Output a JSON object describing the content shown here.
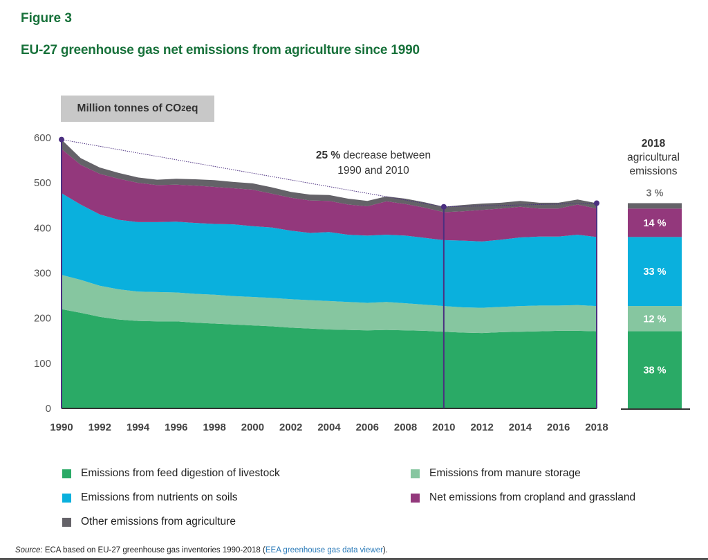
{
  "figure_label": "Figure 3",
  "title": "EU-27 greenhouse gas net emissions from agriculture since 1990",
  "unit_label": {
    "prefix": "Million tonnes of CO",
    "sub": "2",
    "suffix": "eq"
  },
  "annotation": {
    "bold": "25 %",
    "text": " decrease between",
    "line2": "1990 and 2010"
  },
  "side_panel": {
    "year": "2018",
    "line1": "agricultural",
    "line2": "emissions",
    "shares": [
      {
        "series": "livestock",
        "label": "38 %"
      },
      {
        "series": "manure",
        "label": "12 %"
      },
      {
        "series": "soils",
        "label": "33 %"
      },
      {
        "series": "cropland",
        "label": "14 %"
      },
      {
        "series": "other",
        "label": "3 %"
      }
    ]
  },
  "source": {
    "prefix": "Source:",
    "text": " ECA based on EU-27 greenhouse gas inventories 1990-2018 (",
    "link": "EEA greenhouse gas data viewer",
    "suffix": ")."
  },
  "colors": {
    "livestock": "#2aaa66",
    "manure": "#86c6a0",
    "soils": "#0ab0dd",
    "cropland": "#93387c",
    "other": "#646268",
    "marker": "#4b2f80",
    "title": "#17713a"
  },
  "chart_data": {
    "type": "area",
    "stacked": true,
    "title": "EU-27 greenhouse gas net emissions from agriculture since 1990",
    "xlabel": "",
    "ylabel": "Million tonnes of CO2eq",
    "ylim": [
      0,
      600
    ],
    "xlim": [
      1990,
      2018
    ],
    "yticks": [
      0,
      100,
      200,
      300,
      400,
      500,
      600
    ],
    "xticks": [
      1990,
      1992,
      1994,
      1996,
      1998,
      2000,
      2002,
      2004,
      2006,
      2008,
      2010,
      2012,
      2014,
      2016,
      2018
    ],
    "grid": false,
    "legend_position": "bottom",
    "x": [
      1990,
      1991,
      1992,
      1993,
      1994,
      1995,
      1996,
      1997,
      1998,
      1999,
      2000,
      2001,
      2002,
      2003,
      2004,
      2005,
      2006,
      2007,
      2008,
      2009,
      2010,
      2011,
      2012,
      2013,
      2014,
      2015,
      2016,
      2017,
      2018
    ],
    "series": [
      {
        "key": "livestock",
        "name": "Emissions from feed digestion of livestock",
        "values": [
          220,
          212,
          203,
          197,
          194,
          193,
          193,
          190,
          188,
          186,
          184,
          182,
          179,
          177,
          175,
          174,
          173,
          174,
          173,
          172,
          170,
          168,
          167,
          169,
          170,
          171,
          172,
          172,
          171
        ]
      },
      {
        "key": "manure",
        "name": "Emissions from manure storage",
        "values": [
          76,
          73,
          69,
          67,
          65,
          65,
          64,
          64,
          64,
          63,
          63,
          63,
          63,
          63,
          63,
          62,
          61,
          62,
          60,
          58,
          57,
          56,
          56,
          56,
          57,
          57,
          56,
          57,
          56
        ]
      },
      {
        "key": "soils",
        "name": "Emissions from nutrients on soils",
        "values": [
          181,
          167,
          158,
          154,
          154,
          155,
          157,
          157,
          157,
          159,
          157,
          156,
          152,
          149,
          153,
          149,
          149,
          149,
          150,
          148,
          146,
          148,
          147,
          149,
          152,
          153,
          153,
          156,
          153
        ]
      },
      {
        "key": "cropland",
        "name": "Net emissions from cropland and grassland",
        "values": [
          98,
          88,
          90,
          91,
          87,
          82,
          82,
          83,
          82,
          80,
          81,
          75,
          73,
          72,
          69,
          67,
          65,
          74,
          70,
          67,
          62,
          65,
          70,
          69,
          68,
          62,
          62,
          67,
          63
        ]
      },
      {
        "key": "other",
        "name": "Other emissions from agriculture",
        "values": [
          21,
          15,
          14,
          13,
          12,
          12,
          13,
          14,
          15,
          14,
          14,
          14,
          13,
          13,
          13,
          13,
          12,
          11,
          12,
          12,
          12,
          14,
          14,
          13,
          13,
          13,
          13,
          11,
          12
        ]
      }
    ],
    "reference_points": [
      {
        "year": 1990,
        "value": 596
      },
      {
        "year": 2010,
        "value": 447
      },
      {
        "year": 2018,
        "value": 455
      }
    ],
    "annotations": [
      "25 % decrease between 1990 and 2010"
    ],
    "side_bar": {
      "title": "2018 agricultural emissions",
      "shares_percent": {
        "livestock": 38,
        "manure": 12,
        "soils": 33,
        "cropland": 14,
        "other": 3
      }
    }
  },
  "legend": [
    {
      "key": "livestock",
      "label": "Emissions from feed digestion of livestock"
    },
    {
      "key": "manure",
      "label": "Emissions from manure storage"
    },
    {
      "key": "soils",
      "label": "Emissions from nutrients on soils"
    },
    {
      "key": "cropland",
      "label": "Net emissions from cropland and grassland"
    },
    {
      "key": "other",
      "label": "Other emissions from agriculture"
    }
  ]
}
